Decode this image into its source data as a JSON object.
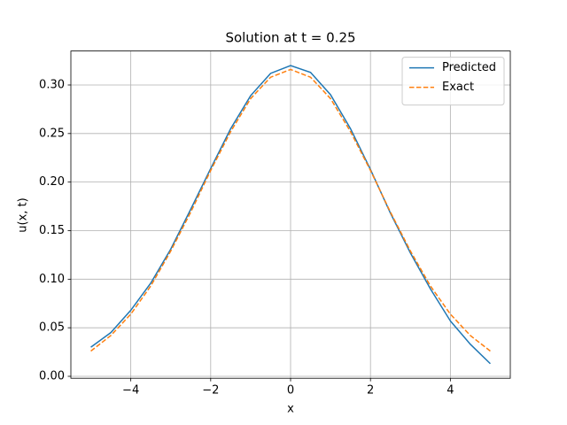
{
  "chart_data": {
    "type": "line",
    "title": "Solution at t = 0.25",
    "x_label": "x",
    "y_label": "u(x, t)",
    "x": [
      -5,
      -4.5,
      -4,
      -3.5,
      -3,
      -2.5,
      -2,
      -1.5,
      -1,
      -0.5,
      0,
      0.5,
      1,
      1.5,
      2,
      2.5,
      3,
      3.5,
      4,
      4.5,
      5
    ],
    "series": [
      {
        "name": "Predicted",
        "color": "#1f77b4",
        "dashed": false,
        "values": [
          0.03,
          0.045,
          0.068,
          0.096,
          0.131,
          0.172,
          0.214,
          0.255,
          0.289,
          0.312,
          0.32,
          0.313,
          0.29,
          0.255,
          0.213,
          0.168,
          0.127,
          0.09,
          0.057,
          0.033,
          0.013
        ]
      },
      {
        "name": "Exact",
        "color": "#ff7f0e",
        "dashed": true,
        "values": [
          0.026,
          0.042,
          0.064,
          0.093,
          0.129,
          0.169,
          0.212,
          0.252,
          0.286,
          0.308,
          0.316,
          0.308,
          0.286,
          0.252,
          0.212,
          0.169,
          0.129,
          0.093,
          0.064,
          0.042,
          0.026
        ]
      }
    ],
    "xlim": [
      -5.5,
      5.5
    ],
    "ylim": [
      -0.002,
      0.335
    ],
    "xticks": [
      {
        "value": -4,
        "label": "−4"
      },
      {
        "value": -2,
        "label": "−2"
      },
      0,
      2,
      4
    ],
    "yticks": [
      {
        "value": 0,
        "label": "0.00"
      },
      0.05,
      {
        "value": 0.1,
        "label": "0.10"
      },
      0.15,
      {
        "value": 0.2,
        "label": "0.20"
      },
      0.25,
      {
        "value": 0.3,
        "label": "0.30"
      }
    ],
    "grid": true,
    "legend": "upper-right"
  }
}
